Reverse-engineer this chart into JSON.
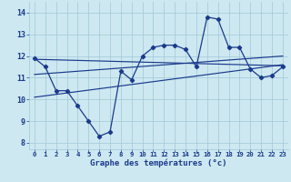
{
  "hours": [
    0,
    1,
    2,
    3,
    4,
    5,
    6,
    7,
    8,
    9,
    10,
    11,
    12,
    13,
    14,
    15,
    16,
    17,
    18,
    19,
    20,
    21,
    22,
    23
  ],
  "temp": [
    11.9,
    11.5,
    10.4,
    10.4,
    9.7,
    9.0,
    8.3,
    8.5,
    11.3,
    10.9,
    12.0,
    12.4,
    12.5,
    12.5,
    12.3,
    11.5,
    13.8,
    13.7,
    12.4,
    12.4,
    11.4,
    11.0,
    11.1,
    11.5
  ],
  "line1_x": [
    0,
    23
  ],
  "line1_y": [
    11.85,
    11.55
  ],
  "line2_x": [
    0,
    23
  ],
  "line2_y": [
    11.15,
    12.0
  ],
  "line3_x": [
    0,
    23
  ],
  "line3_y": [
    10.1,
    11.6
  ],
  "xlabel": "Graphe des températures (°c)",
  "xtick_labels": [
    "0",
    "1",
    "2",
    "3",
    "4",
    "5",
    "6",
    "7",
    "8",
    "9",
    "10",
    "11",
    "12",
    "13",
    "14",
    "15",
    "16",
    "17",
    "18",
    "19",
    "20",
    "21",
    "22",
    "23"
  ],
  "ytick_labels": [
    "8",
    "9",
    "10",
    "11",
    "12",
    "13",
    "14"
  ],
  "yticks": [
    8,
    9,
    10,
    11,
    12,
    13,
    14
  ],
  "ylim": [
    7.7,
    14.5
  ],
  "xlim": [
    -0.5,
    23.5
  ],
  "bg_color": "#cde8f0",
  "line_color": "#1a3a8c",
  "grid_color": "#a0c8d8",
  "label_fontsize": 6.0,
  "tick_fontsize": 5.2,
  "xlabel_fontsize": 6.5
}
